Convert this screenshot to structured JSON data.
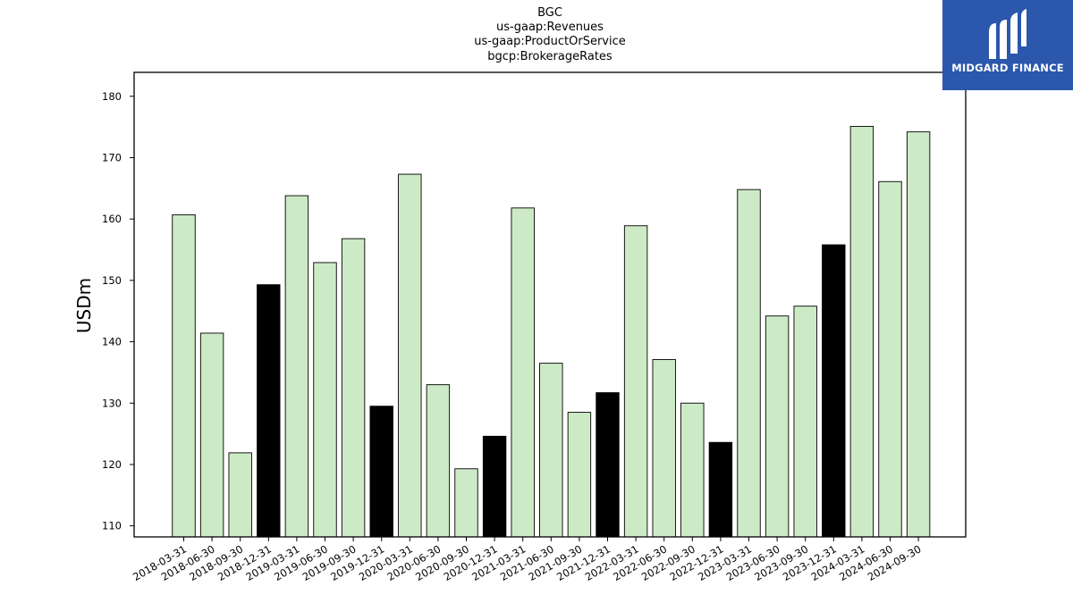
{
  "titles": [
    "BGC",
    "us-gaap:Revenues",
    "us-gaap:ProductOrService",
    "bgcp:BrokerageRates"
  ],
  "logo": {
    "text": "MIDGARD FINANCE",
    "background": "#2b57ac"
  },
  "chart_data": {
    "type": "bar",
    "title": "BGC",
    "ylabel": "USDm",
    "xlabel": "",
    "ylim": [
      108.2,
      183.9
    ],
    "yticks": [
      110,
      120,
      130,
      140,
      150,
      160,
      170,
      180
    ],
    "categories": [
      "2018-03-31",
      "2018-06-30",
      "2018-09-30",
      "2018-12-31",
      "2019-03-31",
      "2019-06-30",
      "2019-09-30",
      "2019-12-31",
      "2020-03-31",
      "2020-06-30",
      "2020-09-30",
      "2020-12-31",
      "2021-03-31",
      "2021-06-30",
      "2021-09-30",
      "2021-12-31",
      "2022-03-31",
      "2022-06-30",
      "2022-09-30",
      "2022-12-31",
      "2023-03-31",
      "2023-06-30",
      "2023-09-30",
      "2023-12-31",
      "2024-03-31",
      "2024-06-30",
      "2024-09-30"
    ],
    "values": [
      160.7,
      141.4,
      121.9,
      149.3,
      163.8,
      152.9,
      156.8,
      129.5,
      167.3,
      133.0,
      119.3,
      124.6,
      161.8,
      136.5,
      128.5,
      131.7,
      158.9,
      137.1,
      130.0,
      123.6,
      164.8,
      144.2,
      145.8,
      155.8,
      175.1,
      166.1,
      174.2
    ],
    "highlight": [
      "2018-12-31",
      "2019-12-31",
      "2020-12-31",
      "2021-12-31",
      "2022-12-31",
      "2023-12-31"
    ],
    "colors": {
      "bar": "#cdeac6",
      "highlight": "#000000",
      "edge": "#000000"
    },
    "grid": false
  }
}
